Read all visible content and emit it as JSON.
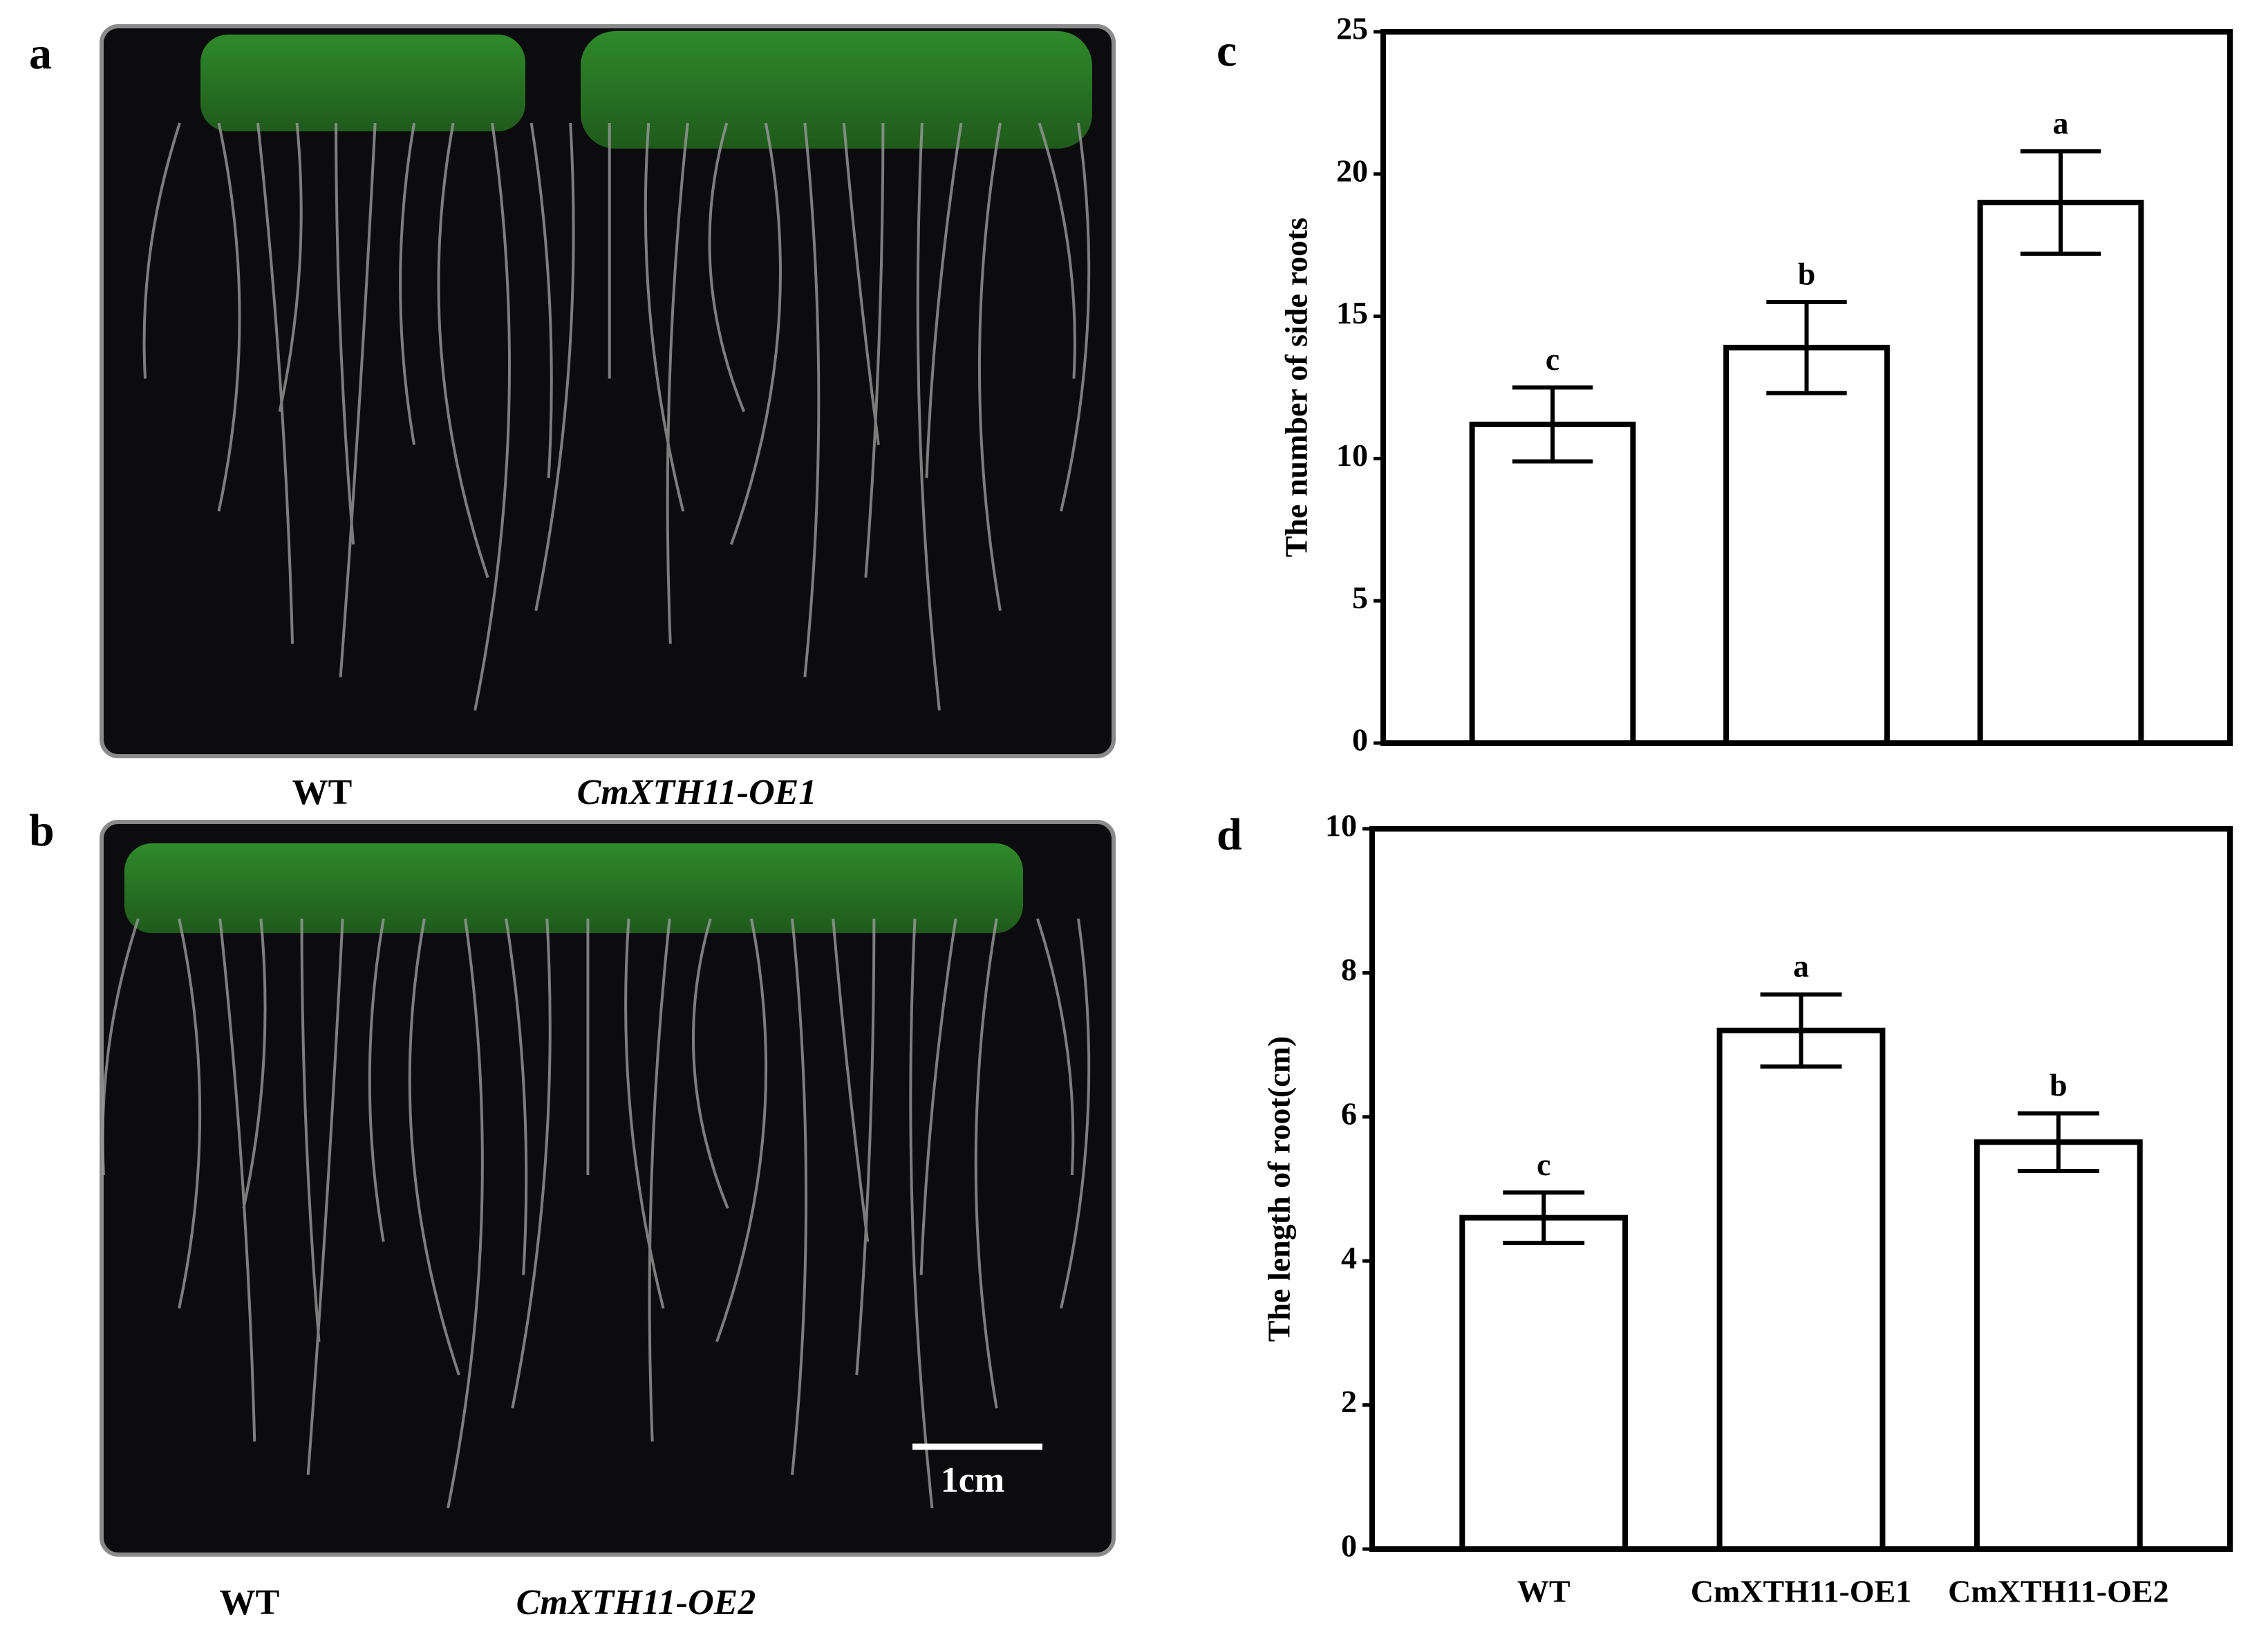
{
  "photos": [
    {
      "label": "a",
      "captions": [
        "WT",
        "CmXTH11-OE1"
      ]
    },
    {
      "label": "b",
      "captions": [
        "WT",
        "CmXTH11-OE2"
      ],
      "scale_bar": "1cm"
    }
  ],
  "chart_data": [
    {
      "type": "bar",
      "label": "c",
      "ylabel": "The number of side roots",
      "categories": [
        null,
        null,
        null
      ],
      "values": [
        11.2,
        13.9,
        19.0
      ],
      "errors": [
        1.3,
        1.6,
        1.8
      ],
      "letters": [
        "c",
        "b",
        "a"
      ],
      "color": "#ffffff",
      "edge_color": "#000000",
      "ylim": [
        0,
        25
      ],
      "yticks": [
        0,
        5,
        10,
        15,
        20,
        25
      ]
    },
    {
      "type": "bar",
      "label": "d",
      "ylabel": "The length of root(cm)",
      "categories": [
        "WT",
        "CmXTH11-OE1",
        "CmXTH11-OE2"
      ],
      "values": [
        4.6,
        7.2,
        5.65
      ],
      "errors": [
        0.35,
        0.5,
        0.4
      ],
      "letters": [
        "c",
        "a",
        "b"
      ],
      "color": "#ffffff",
      "edge_color": "#000000",
      "ylim": [
        0,
        10
      ],
      "yticks": [
        0,
        2,
        4,
        6,
        8,
        10
      ]
    }
  ]
}
